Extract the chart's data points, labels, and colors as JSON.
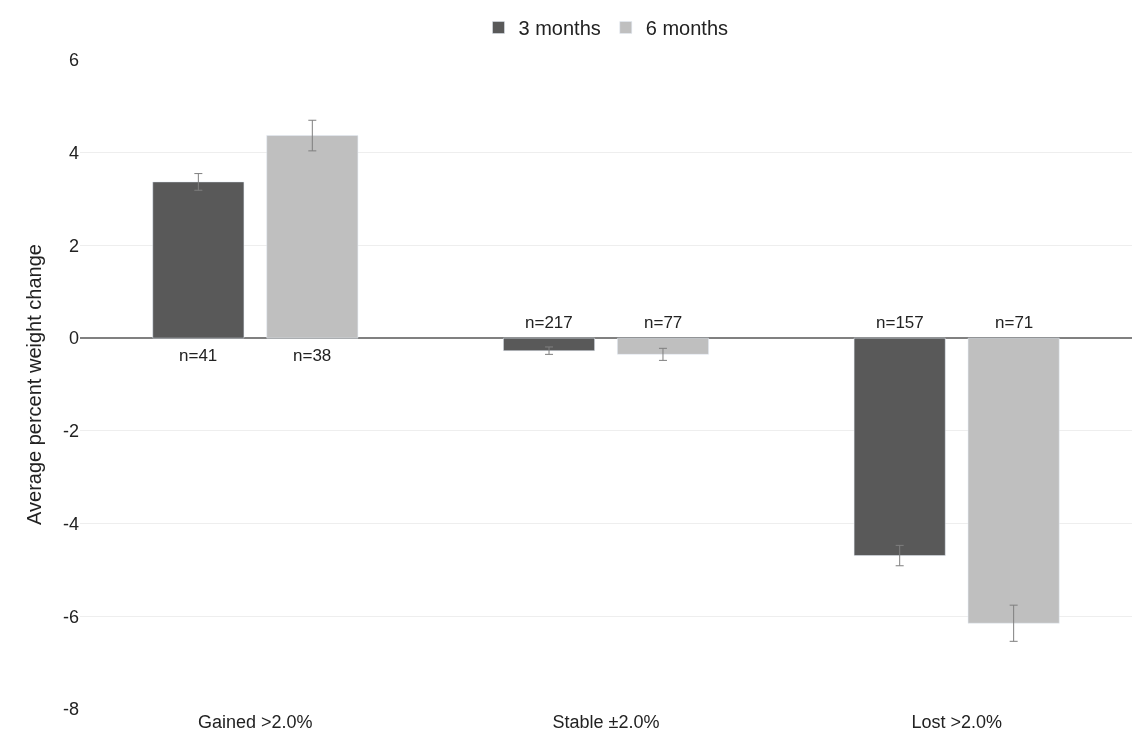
{
  "chart_data": {
    "type": "bar",
    "ylabel": "Average percent weight change",
    "categories": [
      "Gained >2.0%",
      "Stable ±2.0%",
      "Lost >2.0%"
    ],
    "series": [
      {
        "name": "3 months",
        "color": "#595959",
        "values": [
          3.37,
          -0.27,
          -4.69
        ],
        "errors": [
          0.18,
          0.08,
          0.22
        ]
      },
      {
        "name": "6 months",
        "color": "#bfbfbf",
        "values": [
          4.37,
          -0.35,
          -6.15
        ],
        "errors": [
          0.33,
          0.13,
          0.39
        ]
      }
    ],
    "annotations": [
      "n=41",
      "n=38",
      "n=217",
      "n=77",
      "n=157",
      "n=71"
    ],
    "ylim": [
      -8,
      6
    ],
    "yticks": [
      -8,
      -6,
      -4,
      -2,
      0,
      2,
      4,
      6
    ],
    "grid": "y",
    "legend": "top"
  }
}
